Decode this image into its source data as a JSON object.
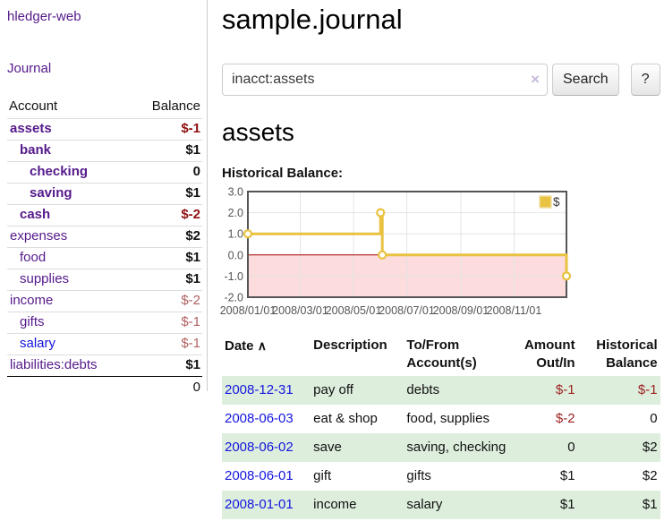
{
  "palette": {
    "purple": "#551a8b",
    "blue": "#1515dd",
    "neg-strong": "#8f1010",
    "neg-soft": "#b06060",
    "neg-table": "#9e2121",
    "row-green": "#ddeedd",
    "gold": "#e8c240"
  },
  "sidebar": {
    "brand": "hledger-web",
    "journal_link": "Journal",
    "headers": {
      "account": "Account",
      "balance": "Balance"
    },
    "accounts": [
      {
        "name": "assets",
        "depth": 1,
        "in_focus": true,
        "balance": "$-1"
      },
      {
        "name": "bank",
        "depth": 2,
        "in_focus": true,
        "balance": "$1"
      },
      {
        "name": "checking",
        "depth": 3,
        "in_focus": true,
        "balance": "0"
      },
      {
        "name": "saving",
        "depth": 3,
        "in_focus": true,
        "balance": "$1"
      },
      {
        "name": "cash",
        "depth": 2,
        "in_focus": true,
        "balance": "$-2"
      },
      {
        "name": "expenses",
        "depth": 1,
        "in_focus": false,
        "balance": "$2"
      },
      {
        "name": "food",
        "depth": 2,
        "in_focus": false,
        "balance": "$1"
      },
      {
        "name": "supplies",
        "depth": 2,
        "in_focus": false,
        "balance": "$1"
      },
      {
        "name": "income",
        "depth": 1,
        "in_focus": false,
        "balance": "$-2"
      },
      {
        "name": "gifts",
        "depth": 2,
        "in_focus": false,
        "balance": "$-1"
      },
      {
        "name": "salary",
        "depth": 2,
        "in_focus": false,
        "balance": "$-1",
        "unvisited": true
      },
      {
        "name": "liabilities:debts",
        "depth": 1,
        "in_focus": false,
        "balance": "$1"
      }
    ],
    "total": "0"
  },
  "main": {
    "title": "sample.journal",
    "account_heading": "assets",
    "chart_label": "Historical Balance:"
  },
  "search": {
    "value": "inacct:assets",
    "clear_icon": "×",
    "button": "Search",
    "help_button": "?"
  },
  "chart_data": {
    "type": "line",
    "style": "step",
    "title": "Historical Balance:",
    "x_range": [
      "2008-01-01",
      "2008-12-31"
    ],
    "ylim": [
      -2,
      3
    ],
    "yticks": [
      3,
      2,
      1,
      0,
      -1,
      -2
    ],
    "ytick_labels": [
      "3.0",
      "2.0",
      "1.0",
      "0.0",
      "-1.0",
      "-2.0"
    ],
    "xticks": [
      {
        "date": "2008-01-01",
        "label": "2008/01/01"
      },
      {
        "date": "2008-03-01",
        "label": "2008/03/01"
      },
      {
        "date": "2008-05-01",
        "label": "2008/05/01"
      },
      {
        "date": "2008-07-01",
        "label": "2008/07/01"
      },
      {
        "date": "2008-09-01",
        "label": "2008/09/01"
      },
      {
        "date": "2008-11-01",
        "label": "2008/11/01"
      }
    ],
    "series": [
      {
        "name": "$",
        "color": "#e8c240",
        "points": [
          {
            "date": "2008-01-01",
            "value": 1
          },
          {
            "date": "2008-06-01",
            "value": 2
          },
          {
            "date": "2008-06-03",
            "value": 0
          },
          {
            "date": "2008-12-31",
            "value": -1
          }
        ]
      }
    ],
    "legend": {
      "position": "top-right",
      "items": [
        {
          "label": "$",
          "color": "#e8c240"
        }
      ]
    },
    "grid": true,
    "negative_region_color": "#fcdcdc",
    "zero_line_color": "#a40000",
    "border_color": "#555555",
    "gridline_color": "#e4e4e4",
    "marker": {
      "fill": "#ffffff",
      "radius": 4
    }
  },
  "register": {
    "headers": {
      "date": "Date",
      "sort_icon": "∧",
      "description": "Description",
      "accounts": "To/From Account(s)",
      "amount": "Amount Out/In",
      "balance": "Historical Balance"
    },
    "rows": [
      {
        "date": "2008-12-31",
        "description": "pay off",
        "accounts": "debts",
        "amount": "$-1",
        "balance": "$-1"
      },
      {
        "date": "2008-06-03",
        "description": "eat & shop",
        "accounts": "food, supplies",
        "amount": "$-2",
        "balance": "0"
      },
      {
        "date": "2008-06-02",
        "description": "save",
        "accounts": "saving, checking",
        "amount": "0",
        "balance": "$2"
      },
      {
        "date": "2008-06-01",
        "description": "gift",
        "accounts": "gifts",
        "amount": "$1",
        "balance": "$2"
      },
      {
        "date": "2008-01-01",
        "description": "income",
        "accounts": "salary",
        "amount": "$1",
        "balance": "$1"
      }
    ]
  }
}
